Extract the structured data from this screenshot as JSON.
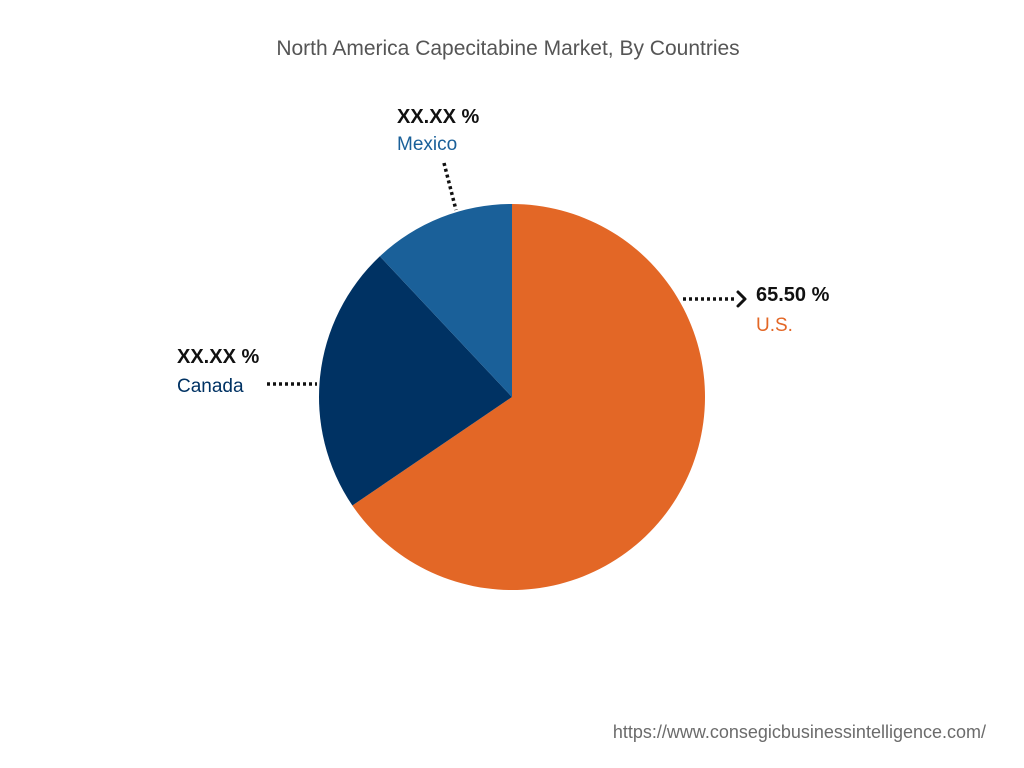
{
  "title": "North America Capecitabine Market, By Countries",
  "source": "https://www.consegicbusinessintelligence.com/",
  "chart_data": {
    "type": "pie",
    "title": "North America Capecitabine Market, By Countries",
    "slices": [
      {
        "name": "U.S.",
        "value": 65.5,
        "label": "65.50 %",
        "color": "#e36726"
      },
      {
        "name": "Canada",
        "value": 22.5,
        "label": "XX.XX %",
        "color": "#003263"
      },
      {
        "name": "Mexico",
        "value": 12.0,
        "label": "XX.XX %",
        "color": "#1a6099"
      }
    ],
    "start_angle": "12 o'clock",
    "direction": "clockwise"
  }
}
